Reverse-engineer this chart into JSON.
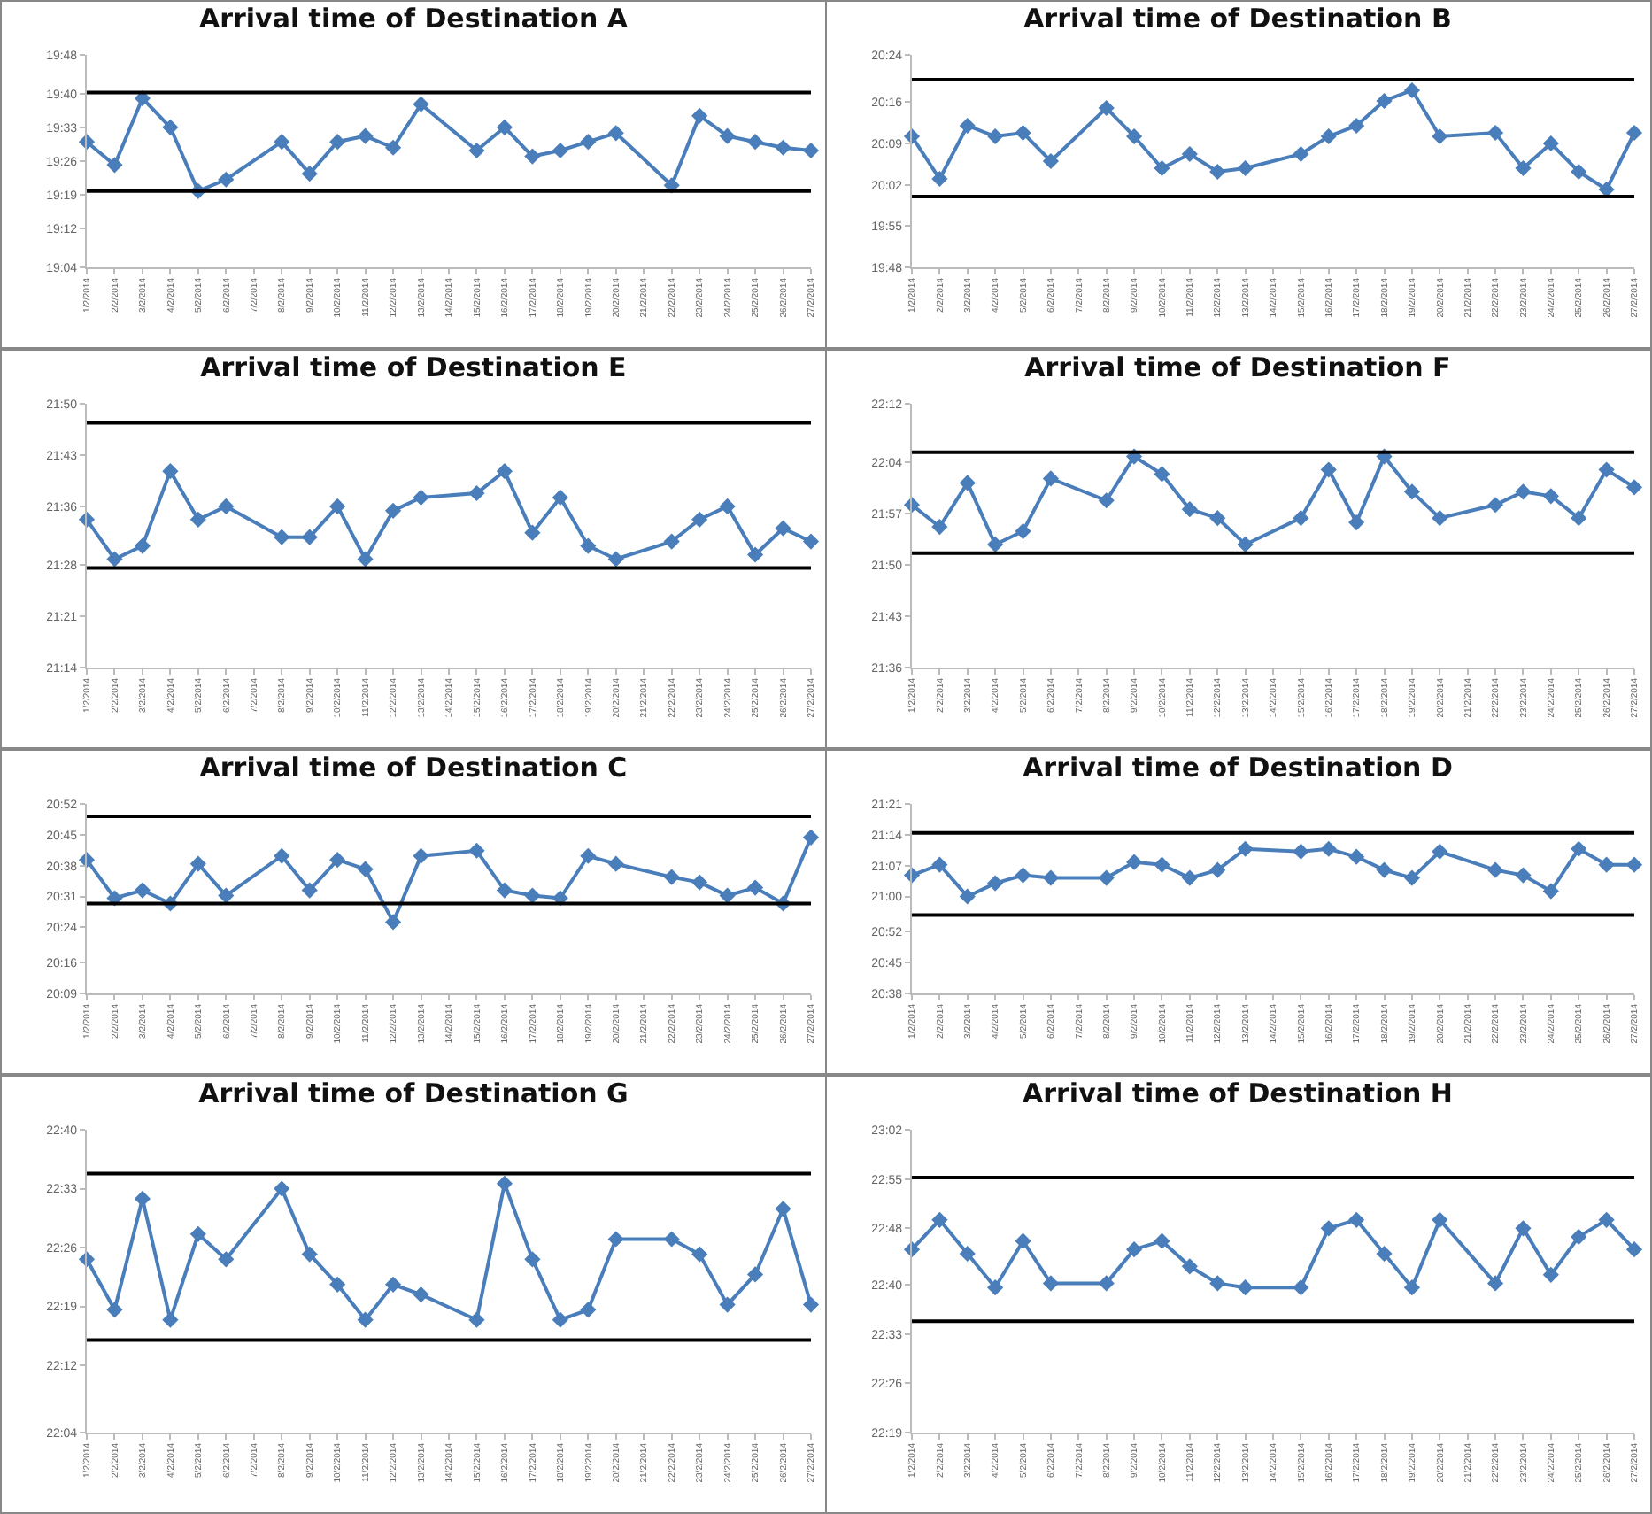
{
  "chart_data": [
    {
      "type": "line",
      "title": "Arrival time of Destination A",
      "marker": "diamond",
      "grid": false,
      "x": [
        "2014-02-01",
        "2014-02-02",
        "2014-02-03",
        "2014-02-04",
        "2014-02-05",
        "2014-02-06",
        "2014-02-08",
        "2014-02-09",
        "2014-02-10",
        "2014-02-11",
        "2014-02-12",
        "2014-02-13",
        "2014-02-15",
        "2014-02-16",
        "2014-02-17",
        "2014-02-18",
        "2014-02-19",
        "2014-02-20",
        "2014-02-22",
        "2014-02-23",
        "2014-02-24",
        "2014-02-25",
        "2014-02-26",
        "2014-02-27"
      ],
      "xlim": [
        "2014-02-01",
        "2014-02-27"
      ],
      "xticks": [
        {
          "value": "2014-02-01",
          "label": "1/2/2014"
        },
        {
          "value": "2014-02-02",
          "label": "2/2/2014"
        },
        {
          "value": "2014-02-03",
          "label": "3/2/2014"
        },
        {
          "value": "2014-02-04",
          "label": "4/2/2014"
        },
        {
          "value": "2014-02-05",
          "label": "5/2/2014"
        },
        {
          "value": "2014-02-06",
          "label": "6/2/2014"
        },
        {
          "value": "2014-02-07",
          "label": "7/2/2014"
        },
        {
          "value": "2014-02-08",
          "label": "8/2/2014"
        },
        {
          "value": "2014-02-09",
          "label": "9/2/2014"
        },
        {
          "value": "2014-02-10",
          "label": "10/2/2014"
        },
        {
          "value": "2014-02-11",
          "label": "11/2/2014"
        },
        {
          "value": "2014-02-12",
          "label": "12/2/2014"
        },
        {
          "value": "2014-02-13",
          "label": "13/2/2014"
        },
        {
          "value": "2014-02-14",
          "label": "14/2/2014"
        },
        {
          "value": "2014-02-15",
          "label": "15/2/2014"
        },
        {
          "value": "2014-02-16",
          "label": "16/2/2014"
        },
        {
          "value": "2014-02-17",
          "label": "17/2/2014"
        },
        {
          "value": "2014-02-18",
          "label": "18/2/2014"
        },
        {
          "value": "2014-02-19",
          "label": "19/2/2014"
        },
        {
          "value": "2014-02-20",
          "label": "20/2/2014"
        },
        {
          "value": "2014-02-21",
          "label": "21/2/2014"
        },
        {
          "value": "2014-02-22",
          "label": "22/2/2014"
        },
        {
          "value": "2014-02-23",
          "label": "23/2/2014"
        },
        {
          "value": "2014-02-24",
          "label": "24/2/2014"
        },
        {
          "value": "2014-02-25",
          "label": "25/2/2014"
        },
        {
          "value": "2014-02-26",
          "label": "26/2/2014"
        },
        {
          "value": "2014-02-27",
          "label": "27/2/2014"
        }
      ],
      "ylim": [
        19.0667,
        19.8
      ],
      "yticks": [
        {
          "value": 19.0667,
          "label": "19:04"
        },
        {
          "value": 19.2,
          "label": "19:12"
        },
        {
          "value": 19.3167,
          "label": "19:19"
        },
        {
          "value": 19.4333,
          "label": "19:26"
        },
        {
          "value": 19.55,
          "label": "19:33"
        },
        {
          "value": 19.6667,
          "label": "19:40"
        },
        {
          "value": 19.8,
          "label": "19:48"
        }
      ],
      "series": [
        {
          "color": "#4a7ebb",
          "values": [
            19.5,
            19.42,
            19.65,
            19.55,
            19.33,
            19.37,
            19.5,
            19.39,
            19.5,
            19.52,
            19.48,
            19.63,
            19.47,
            19.55,
            19.45,
            19.47,
            19.5,
            19.53,
            19.35,
            19.59,
            19.52,
            19.5,
            19.48,
            19.47
          ]
        }
      ],
      "ref_lines": [
        {
          "axis": "y",
          "value": 19.67,
          "color": "#000000"
        },
        {
          "axis": "y",
          "value": 19.33,
          "color": "#000000"
        }
      ]
    },
    {
      "type": "line",
      "title": "Arrival time of Destination B",
      "marker": "diamond",
      "grid": false,
      "x": [
        "2014-02-01",
        "2014-02-02",
        "2014-02-03",
        "2014-02-04",
        "2014-02-05",
        "2014-02-06",
        "2014-02-08",
        "2014-02-09",
        "2014-02-10",
        "2014-02-11",
        "2014-02-12",
        "2014-02-13",
        "2014-02-15",
        "2014-02-16",
        "2014-02-17",
        "2014-02-18",
        "2014-02-19",
        "2014-02-20",
        "2014-02-22",
        "2014-02-23",
        "2014-02-24",
        "2014-02-25",
        "2014-02-26",
        "2014-02-27"
      ],
      "xlim": [
        "2014-02-01",
        "2014-02-27"
      ],
      "xticks": [
        {
          "value": "2014-02-01",
          "label": "1/2/2014"
        },
        {
          "value": "2014-02-02",
          "label": "2/2/2014"
        },
        {
          "value": "2014-02-03",
          "label": "3/2/2014"
        },
        {
          "value": "2014-02-04",
          "label": "4/2/2014"
        },
        {
          "value": "2014-02-05",
          "label": "5/2/2014"
        },
        {
          "value": "2014-02-06",
          "label": "6/2/2014"
        },
        {
          "value": "2014-02-07",
          "label": "7/2/2014"
        },
        {
          "value": "2014-02-08",
          "label": "8/2/2014"
        },
        {
          "value": "2014-02-09",
          "label": "9/2/2014"
        },
        {
          "value": "2014-02-10",
          "label": "10/2/2014"
        },
        {
          "value": "2014-02-11",
          "label": "11/2/2014"
        },
        {
          "value": "2014-02-12",
          "label": "12/2/2014"
        },
        {
          "value": "2014-02-13",
          "label": "13/2/2014"
        },
        {
          "value": "2014-02-14",
          "label": "14/2/2014"
        },
        {
          "value": "2014-02-15",
          "label": "15/2/2014"
        },
        {
          "value": "2014-02-16",
          "label": "16/2/2014"
        },
        {
          "value": "2014-02-17",
          "label": "17/2/2014"
        },
        {
          "value": "2014-02-18",
          "label": "18/2/2014"
        },
        {
          "value": "2014-02-19",
          "label": "19/2/2014"
        },
        {
          "value": "2014-02-20",
          "label": "20/2/2014"
        },
        {
          "value": "2014-02-21",
          "label": "21/2/2014"
        },
        {
          "value": "2014-02-22",
          "label": "22/2/2014"
        },
        {
          "value": "2014-02-23",
          "label": "23/2/2014"
        },
        {
          "value": "2014-02-24",
          "label": "24/2/2014"
        },
        {
          "value": "2014-02-25",
          "label": "25/2/2014"
        },
        {
          "value": "2014-02-26",
          "label": "26/2/2014"
        },
        {
          "value": "2014-02-27",
          "label": "27/2/2014"
        }
      ],
      "ylim": [
        19.8,
        20.4
      ],
      "yticks": [
        {
          "value": 19.8,
          "label": "19:48"
        },
        {
          "value": 19.9167,
          "label": "19:55"
        },
        {
          "value": 20.0333,
          "label": "20:02"
        },
        {
          "value": 20.15,
          "label": "20:09"
        },
        {
          "value": 20.2667,
          "label": "20:16"
        },
        {
          "value": 20.4,
          "label": "20:24"
        }
      ],
      "series": [
        {
          "color": "#4a7ebb",
          "values": [
            20.17,
            20.05,
            20.2,
            20.17,
            20.18,
            20.1,
            20.25,
            20.17,
            20.08,
            20.12,
            20.07,
            20.08,
            20.12,
            20.17,
            20.2,
            20.27,
            20.3,
            20.17,
            20.18,
            20.08,
            20.15,
            20.07,
            20.02,
            20.18
          ]
        }
      ],
      "ref_lines": [
        {
          "axis": "y",
          "value": 20.33,
          "color": "#000000"
        },
        {
          "axis": "y",
          "value": 20.0,
          "color": "#000000"
        }
      ]
    },
    {
      "type": "line",
      "title": "Arrival time of Destination E",
      "marker": "diamond",
      "grid": false,
      "x": [
        "2014-02-01",
        "2014-02-02",
        "2014-02-03",
        "2014-02-04",
        "2014-02-05",
        "2014-02-06",
        "2014-02-08",
        "2014-02-09",
        "2014-02-10",
        "2014-02-11",
        "2014-02-12",
        "2014-02-13",
        "2014-02-15",
        "2014-02-16",
        "2014-02-17",
        "2014-02-18",
        "2014-02-19",
        "2014-02-20",
        "2014-02-22",
        "2014-02-23",
        "2014-02-24",
        "2014-02-25",
        "2014-02-26",
        "2014-02-27"
      ],
      "xlim": [
        "2014-02-01",
        "2014-02-27"
      ],
      "xticks": [
        {
          "value": "2014-02-01",
          "label": "1/2/2014"
        },
        {
          "value": "2014-02-02",
          "label": "2/2/2014"
        },
        {
          "value": "2014-02-03",
          "label": "3/2/2014"
        },
        {
          "value": "2014-02-04",
          "label": "4/2/2014"
        },
        {
          "value": "2014-02-05",
          "label": "5/2/2014"
        },
        {
          "value": "2014-02-06",
          "label": "6/2/2014"
        },
        {
          "value": "2014-02-07",
          "label": "7/2/2014"
        },
        {
          "value": "2014-02-08",
          "label": "8/2/2014"
        },
        {
          "value": "2014-02-09",
          "label": "9/2/2014"
        },
        {
          "value": "2014-02-10",
          "label": "10/2/2014"
        },
        {
          "value": "2014-02-11",
          "label": "11/2/2014"
        },
        {
          "value": "2014-02-12",
          "label": "12/2/2014"
        },
        {
          "value": "2014-02-13",
          "label": "13/2/2014"
        },
        {
          "value": "2014-02-14",
          "label": "14/2/2014"
        },
        {
          "value": "2014-02-15",
          "label": "15/2/2014"
        },
        {
          "value": "2014-02-16",
          "label": "16/2/2014"
        },
        {
          "value": "2014-02-17",
          "label": "17/2/2014"
        },
        {
          "value": "2014-02-18",
          "label": "18/2/2014"
        },
        {
          "value": "2014-02-19",
          "label": "19/2/2014"
        },
        {
          "value": "2014-02-20",
          "label": "20/2/2014"
        },
        {
          "value": "2014-02-21",
          "label": "21/2/2014"
        },
        {
          "value": "2014-02-22",
          "label": "22/2/2014"
        },
        {
          "value": "2014-02-23",
          "label": "23/2/2014"
        },
        {
          "value": "2014-02-24",
          "label": "24/2/2014"
        },
        {
          "value": "2014-02-25",
          "label": "25/2/2014"
        },
        {
          "value": "2014-02-26",
          "label": "26/2/2014"
        },
        {
          "value": "2014-02-27",
          "label": "27/2/2014"
        }
      ],
      "ylim": [
        21.2333,
        21.8333
      ],
      "yticks": [
        {
          "value": 21.2333,
          "label": "21:14"
        },
        {
          "value": 21.35,
          "label": "21:21"
        },
        {
          "value": 21.4667,
          "label": "21:28"
        },
        {
          "value": 21.6,
          "label": "21:36"
        },
        {
          "value": 21.7167,
          "label": "21:43"
        },
        {
          "value": 21.8333,
          "label": "21:50"
        }
      ],
      "series": [
        {
          "color": "#4a7ebb",
          "values": [
            21.57,
            21.48,
            21.51,
            21.68,
            21.57,
            21.6,
            21.53,
            21.53,
            21.6,
            21.48,
            21.59,
            21.62,
            21.63,
            21.68,
            21.54,
            21.62,
            21.51,
            21.48,
            21.52,
            21.57,
            21.6,
            21.49,
            21.55,
            21.52
          ]
        }
      ],
      "ref_lines": [
        {
          "axis": "y",
          "value": 21.79,
          "color": "#000000"
        },
        {
          "axis": "y",
          "value": 21.46,
          "color": "#000000"
        }
      ]
    },
    {
      "type": "line",
      "title": "Arrival time of Destination F",
      "marker": "diamond",
      "grid": false,
      "x": [
        "2014-02-01",
        "2014-02-02",
        "2014-02-03",
        "2014-02-04",
        "2014-02-05",
        "2014-02-06",
        "2014-02-08",
        "2014-02-09",
        "2014-02-10",
        "2014-02-11",
        "2014-02-12",
        "2014-02-13",
        "2014-02-15",
        "2014-02-16",
        "2014-02-17",
        "2014-02-18",
        "2014-02-19",
        "2014-02-20",
        "2014-02-22",
        "2014-02-23",
        "2014-02-24",
        "2014-02-25",
        "2014-02-26",
        "2014-02-27"
      ],
      "xlim": [
        "2014-02-01",
        "2014-02-27"
      ],
      "xticks": [
        {
          "value": "2014-02-01",
          "label": "1/2/2014"
        },
        {
          "value": "2014-02-02",
          "label": "2/2/2014"
        },
        {
          "value": "2014-02-03",
          "label": "3/2/2014"
        },
        {
          "value": "2014-02-04",
          "label": "4/2/2014"
        },
        {
          "value": "2014-02-05",
          "label": "5/2/2014"
        },
        {
          "value": "2014-02-06",
          "label": "6/2/2014"
        },
        {
          "value": "2014-02-07",
          "label": "7/2/2014"
        },
        {
          "value": "2014-02-08",
          "label": "8/2/2014"
        },
        {
          "value": "2014-02-09",
          "label": "9/2/2014"
        },
        {
          "value": "2014-02-10",
          "label": "10/2/2014"
        },
        {
          "value": "2014-02-11",
          "label": "11/2/2014"
        },
        {
          "value": "2014-02-12",
          "label": "12/2/2014"
        },
        {
          "value": "2014-02-13",
          "label": "13/2/2014"
        },
        {
          "value": "2014-02-14",
          "label": "14/2/2014"
        },
        {
          "value": "2014-02-15",
          "label": "15/2/2014"
        },
        {
          "value": "2014-02-16",
          "label": "16/2/2014"
        },
        {
          "value": "2014-02-17",
          "label": "17/2/2014"
        },
        {
          "value": "2014-02-18",
          "label": "18/2/2014"
        },
        {
          "value": "2014-02-19",
          "label": "19/2/2014"
        },
        {
          "value": "2014-02-20",
          "label": "20/2/2014"
        },
        {
          "value": "2014-02-21",
          "label": "21/2/2014"
        },
        {
          "value": "2014-02-22",
          "label": "22/2/2014"
        },
        {
          "value": "2014-02-23",
          "label": "23/2/2014"
        },
        {
          "value": "2014-02-24",
          "label": "24/2/2014"
        },
        {
          "value": "2014-02-25",
          "label": "25/2/2014"
        },
        {
          "value": "2014-02-26",
          "label": "26/2/2014"
        },
        {
          "value": "2014-02-27",
          "label": "27/2/2014"
        }
      ],
      "ylim": [
        21.6,
        22.2
      ],
      "yticks": [
        {
          "value": 21.6,
          "label": "21:36"
        },
        {
          "value": 21.7167,
          "label": "21:43"
        },
        {
          "value": 21.8333,
          "label": "21:50"
        },
        {
          "value": 21.95,
          "label": "21:57"
        },
        {
          "value": 22.0667,
          "label": "22:04"
        },
        {
          "value": 22.2,
          "label": "22:12"
        }
      ],
      "series": [
        {
          "color": "#4a7ebb",
          "values": [
            21.97,
            21.92,
            22.02,
            21.88,
            21.91,
            22.03,
            21.98,
            22.08,
            22.04,
            21.96,
            21.94,
            21.88,
            21.94,
            22.05,
            21.93,
            22.08,
            22.0,
            21.94,
            21.97,
            22.0,
            21.99,
            21.94,
            22.05,
            22.01
          ]
        }
      ],
      "ref_lines": [
        {
          "axis": "y",
          "value": 22.09,
          "color": "#000000"
        },
        {
          "axis": "y",
          "value": 21.86,
          "color": "#000000"
        }
      ]
    },
    {
      "type": "line",
      "title": "Arrival time of Destination C",
      "marker": "diamond",
      "grid": false,
      "x": [
        "2014-02-01",
        "2014-02-02",
        "2014-02-03",
        "2014-02-04",
        "2014-02-05",
        "2014-02-06",
        "2014-02-08",
        "2014-02-09",
        "2014-02-10",
        "2014-02-11",
        "2014-02-12",
        "2014-02-13",
        "2014-02-15",
        "2014-02-16",
        "2014-02-17",
        "2014-02-18",
        "2014-02-19",
        "2014-02-20",
        "2014-02-22",
        "2014-02-23",
        "2014-02-24",
        "2014-02-25",
        "2014-02-26",
        "2014-02-27"
      ],
      "xlim": [
        "2014-02-01",
        "2014-02-27"
      ],
      "xticks": [
        {
          "value": "2014-02-01",
          "label": "1/2/2014"
        },
        {
          "value": "2014-02-02",
          "label": "2/2/2014"
        },
        {
          "value": "2014-02-03",
          "label": "3/2/2014"
        },
        {
          "value": "2014-02-04",
          "label": "4/2/2014"
        },
        {
          "value": "2014-02-05",
          "label": "5/2/2014"
        },
        {
          "value": "2014-02-06",
          "label": "6/2/2014"
        },
        {
          "value": "2014-02-07",
          "label": "7/2/2014"
        },
        {
          "value": "2014-02-08",
          "label": "8/2/2014"
        },
        {
          "value": "2014-02-09",
          "label": "9/2/2014"
        },
        {
          "value": "2014-02-10",
          "label": "10/2/2014"
        },
        {
          "value": "2014-02-11",
          "label": "11/2/2014"
        },
        {
          "value": "2014-02-12",
          "label": "12/2/2014"
        },
        {
          "value": "2014-02-13",
          "label": "13/2/2014"
        },
        {
          "value": "2014-02-14",
          "label": "14/2/2014"
        },
        {
          "value": "2014-02-15",
          "label": "15/2/2014"
        },
        {
          "value": "2014-02-16",
          "label": "16/2/2014"
        },
        {
          "value": "2014-02-17",
          "label": "17/2/2014"
        },
        {
          "value": "2014-02-18",
          "label": "18/2/2014"
        },
        {
          "value": "2014-02-19",
          "label": "19/2/2014"
        },
        {
          "value": "2014-02-20",
          "label": "20/2/2014"
        },
        {
          "value": "2014-02-21",
          "label": "21/2/2014"
        },
        {
          "value": "2014-02-22",
          "label": "22/2/2014"
        },
        {
          "value": "2014-02-23",
          "label": "23/2/2014"
        },
        {
          "value": "2014-02-24",
          "label": "24/2/2014"
        },
        {
          "value": "2014-02-25",
          "label": "25/2/2014"
        },
        {
          "value": "2014-02-26",
          "label": "26/2/2014"
        },
        {
          "value": "2014-02-27",
          "label": "27/2/2014"
        }
      ],
      "ylim": [
        20.15,
        20.8667
      ],
      "yticks": [
        {
          "value": 20.15,
          "label": "20:09"
        },
        {
          "value": 20.2667,
          "label": "20:16"
        },
        {
          "value": 20.4,
          "label": "20:24"
        },
        {
          "value": 20.5167,
          "label": "20:31"
        },
        {
          "value": 20.6333,
          "label": "20:38"
        },
        {
          "value": 20.75,
          "label": "20:45"
        },
        {
          "value": 20.8667,
          "label": "20:52"
        }
      ],
      "series": [
        {
          "color": "#4a7ebb",
          "values": [
            20.655,
            20.51,
            20.54,
            20.49,
            20.64,
            20.52,
            20.67,
            20.54,
            20.655,
            20.62,
            20.42,
            20.67,
            20.69,
            20.54,
            20.52,
            20.51,
            20.67,
            20.64,
            20.59,
            20.57,
            20.52,
            20.55,
            20.49,
            20.74
          ]
        }
      ],
      "ref_lines": [
        {
          "axis": "y",
          "value": 20.82,
          "color": "#000000"
        },
        {
          "axis": "y",
          "value": 20.49,
          "color": "#000000"
        }
      ]
    },
    {
      "type": "line",
      "title": "Arrival time of Destination D",
      "marker": "diamond",
      "grid": false,
      "x": [
        "2014-02-01",
        "2014-02-02",
        "2014-02-03",
        "2014-02-04",
        "2014-02-05",
        "2014-02-06",
        "2014-02-08",
        "2014-02-09",
        "2014-02-10",
        "2014-02-11",
        "2014-02-12",
        "2014-02-13",
        "2014-02-15",
        "2014-02-16",
        "2014-02-17",
        "2014-02-18",
        "2014-02-19",
        "2014-02-20",
        "2014-02-22",
        "2014-02-23",
        "2014-02-24",
        "2014-02-25",
        "2014-02-26",
        "2014-02-27"
      ],
      "xlim": [
        "2014-02-01",
        "2014-02-27"
      ],
      "xticks": [
        {
          "value": "2014-02-01",
          "label": "1/2/2014"
        },
        {
          "value": "2014-02-02",
          "label": "2/2/2014"
        },
        {
          "value": "2014-02-03",
          "label": "3/2/2014"
        },
        {
          "value": "2014-02-04",
          "label": "4/2/2014"
        },
        {
          "value": "2014-02-05",
          "label": "5/2/2014"
        },
        {
          "value": "2014-02-06",
          "label": "6/2/2014"
        },
        {
          "value": "2014-02-07",
          "label": "7/2/2014"
        },
        {
          "value": "2014-02-08",
          "label": "8/2/2014"
        },
        {
          "value": "2014-02-09",
          "label": "9/2/2014"
        },
        {
          "value": "2014-02-10",
          "label": "10/2/2014"
        },
        {
          "value": "2014-02-11",
          "label": "11/2/2014"
        },
        {
          "value": "2014-02-12",
          "label": "12/2/2014"
        },
        {
          "value": "2014-02-13",
          "label": "13/2/2014"
        },
        {
          "value": "2014-02-14",
          "label": "14/2/2014"
        },
        {
          "value": "2014-02-15",
          "label": "15/2/2014"
        },
        {
          "value": "2014-02-16",
          "label": "16/2/2014"
        },
        {
          "value": "2014-02-17",
          "label": "17/2/2014"
        },
        {
          "value": "2014-02-18",
          "label": "18/2/2014"
        },
        {
          "value": "2014-02-19",
          "label": "19/2/2014"
        },
        {
          "value": "2014-02-20",
          "label": "20/2/2014"
        },
        {
          "value": "2014-02-21",
          "label": "21/2/2014"
        },
        {
          "value": "2014-02-22",
          "label": "22/2/2014"
        },
        {
          "value": "2014-02-23",
          "label": "23/2/2014"
        },
        {
          "value": "2014-02-24",
          "label": "24/2/2014"
        },
        {
          "value": "2014-02-25",
          "label": "25/2/2014"
        },
        {
          "value": "2014-02-26",
          "label": "26/2/2014"
        },
        {
          "value": "2014-02-27",
          "label": "27/2/2014"
        }
      ],
      "ylim": [
        20.6333,
        21.35
      ],
      "yticks": [
        {
          "value": 20.6333,
          "label": "20:38"
        },
        {
          "value": 20.75,
          "label": "20:45"
        },
        {
          "value": 20.8667,
          "label": "20:52"
        },
        {
          "value": 21.0,
          "label": "21:00"
        },
        {
          "value": 21.1167,
          "label": "21:07"
        },
        {
          "value": 21.2333,
          "label": "21:14"
        },
        {
          "value": 21.35,
          "label": "21:21"
        }
      ],
      "series": [
        {
          "color": "#4a7ebb",
          "values": [
            21.08,
            21.12,
            21.0,
            21.05,
            21.08,
            21.07,
            21.07,
            21.13,
            21.12,
            21.07,
            21.1,
            21.18,
            21.17,
            21.18,
            21.15,
            21.1,
            21.07,
            21.17,
            21.1,
            21.08,
            21.02,
            21.18,
            21.12,
            21.12
          ]
        }
      ],
      "ref_lines": [
        {
          "axis": "y",
          "value": 21.24,
          "color": "#000000"
        },
        {
          "axis": "y",
          "value": 20.93,
          "color": "#000000"
        }
      ]
    },
    {
      "type": "line",
      "title": "Arrival time of Destination G",
      "marker": "diamond",
      "grid": false,
      "x": [
        "2014-02-01",
        "2014-02-02",
        "2014-02-03",
        "2014-02-04",
        "2014-02-05",
        "2014-02-06",
        "2014-02-08",
        "2014-02-09",
        "2014-02-10",
        "2014-02-11",
        "2014-02-12",
        "2014-02-13",
        "2014-02-15",
        "2014-02-16",
        "2014-02-17",
        "2014-02-18",
        "2014-02-19",
        "2014-02-20",
        "2014-02-22",
        "2014-02-23",
        "2014-02-24",
        "2014-02-25",
        "2014-02-26",
        "2014-02-27"
      ],
      "xlim": [
        "2014-02-01",
        "2014-02-27"
      ],
      "xticks": [
        {
          "value": "2014-02-01",
          "label": "1/2/2014"
        },
        {
          "value": "2014-02-02",
          "label": "2/2/2014"
        },
        {
          "value": "2014-02-03",
          "label": "3/2/2014"
        },
        {
          "value": "2014-02-04",
          "label": "4/2/2014"
        },
        {
          "value": "2014-02-05",
          "label": "5/2/2014"
        },
        {
          "value": "2014-02-06",
          "label": "6/2/2014"
        },
        {
          "value": "2014-02-07",
          "label": "7/2/2014"
        },
        {
          "value": "2014-02-08",
          "label": "8/2/2014"
        },
        {
          "value": "2014-02-09",
          "label": "9/2/2014"
        },
        {
          "value": "2014-02-10",
          "label": "10/2/2014"
        },
        {
          "value": "2014-02-11",
          "label": "11/2/2014"
        },
        {
          "value": "2014-02-12",
          "label": "12/2/2014"
        },
        {
          "value": "2014-02-13",
          "label": "13/2/2014"
        },
        {
          "value": "2014-02-14",
          "label": "14/2/2014"
        },
        {
          "value": "2014-02-15",
          "label": "15/2/2014"
        },
        {
          "value": "2014-02-16",
          "label": "16/2/2014"
        },
        {
          "value": "2014-02-17",
          "label": "17/2/2014"
        },
        {
          "value": "2014-02-18",
          "label": "18/2/2014"
        },
        {
          "value": "2014-02-19",
          "label": "19/2/2014"
        },
        {
          "value": "2014-02-20",
          "label": "20/2/2014"
        },
        {
          "value": "2014-02-21",
          "label": "21/2/2014"
        },
        {
          "value": "2014-02-22",
          "label": "22/2/2014"
        },
        {
          "value": "2014-02-23",
          "label": "23/2/2014"
        },
        {
          "value": "2014-02-24",
          "label": "24/2/2014"
        },
        {
          "value": "2014-02-25",
          "label": "25/2/2014"
        },
        {
          "value": "2014-02-26",
          "label": "26/2/2014"
        },
        {
          "value": "2014-02-27",
          "label": "27/2/2014"
        }
      ],
      "ylim": [
        22.0667,
        22.6667
      ],
      "yticks": [
        {
          "value": 22.0667,
          "label": "22:04"
        },
        {
          "value": 22.2,
          "label": "22:12"
        },
        {
          "value": 22.3167,
          "label": "22:19"
        },
        {
          "value": 22.4333,
          "label": "22:26"
        },
        {
          "value": 22.55,
          "label": "22:33"
        },
        {
          "value": 22.6667,
          "label": "22:40"
        }
      ],
      "series": [
        {
          "color": "#4a7ebb",
          "values": [
            22.41,
            22.31,
            22.53,
            22.29,
            22.46,
            22.41,
            22.55,
            22.42,
            22.36,
            22.29,
            22.36,
            22.34,
            22.29,
            22.56,
            22.41,
            22.29,
            22.31,
            22.45,
            22.45,
            22.42,
            22.32,
            22.38,
            22.51,
            22.32
          ]
        }
      ],
      "ref_lines": [
        {
          "axis": "y",
          "value": 22.58,
          "color": "#000000"
        },
        {
          "axis": "y",
          "value": 22.25,
          "color": "#000000"
        }
      ]
    },
    {
      "type": "line",
      "title": "Arrival time of Destination H",
      "marker": "diamond",
      "grid": false,
      "x": [
        "2014-02-01",
        "2014-02-02",
        "2014-02-03",
        "2014-02-04",
        "2014-02-05",
        "2014-02-06",
        "2014-02-08",
        "2014-02-09",
        "2014-02-10",
        "2014-02-11",
        "2014-02-12",
        "2014-02-13",
        "2014-02-15",
        "2014-02-16",
        "2014-02-17",
        "2014-02-18",
        "2014-02-19",
        "2014-02-20",
        "2014-02-22",
        "2014-02-23",
        "2014-02-24",
        "2014-02-25",
        "2014-02-26",
        "2014-02-27"
      ],
      "xlim": [
        "2014-02-01",
        "2014-02-27"
      ],
      "xticks": [
        {
          "value": "2014-02-01",
          "label": "1/2/2014"
        },
        {
          "value": "2014-02-02",
          "label": "2/2/2014"
        },
        {
          "value": "2014-02-03",
          "label": "3/2/2014"
        },
        {
          "value": "2014-02-04",
          "label": "4/2/2014"
        },
        {
          "value": "2014-02-05",
          "label": "5/2/2014"
        },
        {
          "value": "2014-02-06",
          "label": "6/2/2014"
        },
        {
          "value": "2014-02-07",
          "label": "7/2/2014"
        },
        {
          "value": "2014-02-08",
          "label": "8/2/2014"
        },
        {
          "value": "2014-02-09",
          "label": "9/2/2014"
        },
        {
          "value": "2014-02-10",
          "label": "10/2/2014"
        },
        {
          "value": "2014-02-11",
          "label": "11/2/2014"
        },
        {
          "value": "2014-02-12",
          "label": "12/2/2014"
        },
        {
          "value": "2014-02-13",
          "label": "13/2/2014"
        },
        {
          "value": "2014-02-14",
          "label": "14/2/2014"
        },
        {
          "value": "2014-02-15",
          "label": "15/2/2014"
        },
        {
          "value": "2014-02-16",
          "label": "16/2/2014"
        },
        {
          "value": "2014-02-17",
          "label": "17/2/2014"
        },
        {
          "value": "2014-02-18",
          "label": "18/2/2014"
        },
        {
          "value": "2014-02-19",
          "label": "19/2/2014"
        },
        {
          "value": "2014-02-20",
          "label": "20/2/2014"
        },
        {
          "value": "2014-02-21",
          "label": "21/2/2014"
        },
        {
          "value": "2014-02-22",
          "label": "22/2/2014"
        },
        {
          "value": "2014-02-23",
          "label": "23/2/2014"
        },
        {
          "value": "2014-02-24",
          "label": "24/2/2014"
        },
        {
          "value": "2014-02-25",
          "label": "25/2/2014"
        },
        {
          "value": "2014-02-26",
          "label": "26/2/2014"
        },
        {
          "value": "2014-02-27",
          "label": "27/2/2014"
        }
      ],
      "ylim": [
        22.3167,
        23.0333
      ],
      "yticks": [
        {
          "value": 22.3167,
          "label": "22:19"
        },
        {
          "value": 22.4333,
          "label": "22:26"
        },
        {
          "value": 22.55,
          "label": "22:33"
        },
        {
          "value": 22.6667,
          "label": "22:40"
        },
        {
          "value": 22.8,
          "label": "22:48"
        },
        {
          "value": 22.9167,
          "label": "22:55"
        },
        {
          "value": 23.0333,
          "label": "23:02"
        }
      ],
      "series": [
        {
          "color": "#4a7ebb",
          "values": [
            22.75,
            22.82,
            22.74,
            22.66,
            22.77,
            22.67,
            22.67,
            22.75,
            22.77,
            22.71,
            22.67,
            22.66,
            22.66,
            22.8,
            22.82,
            22.74,
            22.66,
            22.82,
            22.67,
            22.8,
            22.69,
            22.78,
            22.82,
            22.75
          ]
        }
      ],
      "ref_lines": [
        {
          "axis": "y",
          "value": 22.92,
          "color": "#000000"
        },
        {
          "axis": "y",
          "value": 22.58,
          "color": "#000000"
        }
      ]
    }
  ]
}
